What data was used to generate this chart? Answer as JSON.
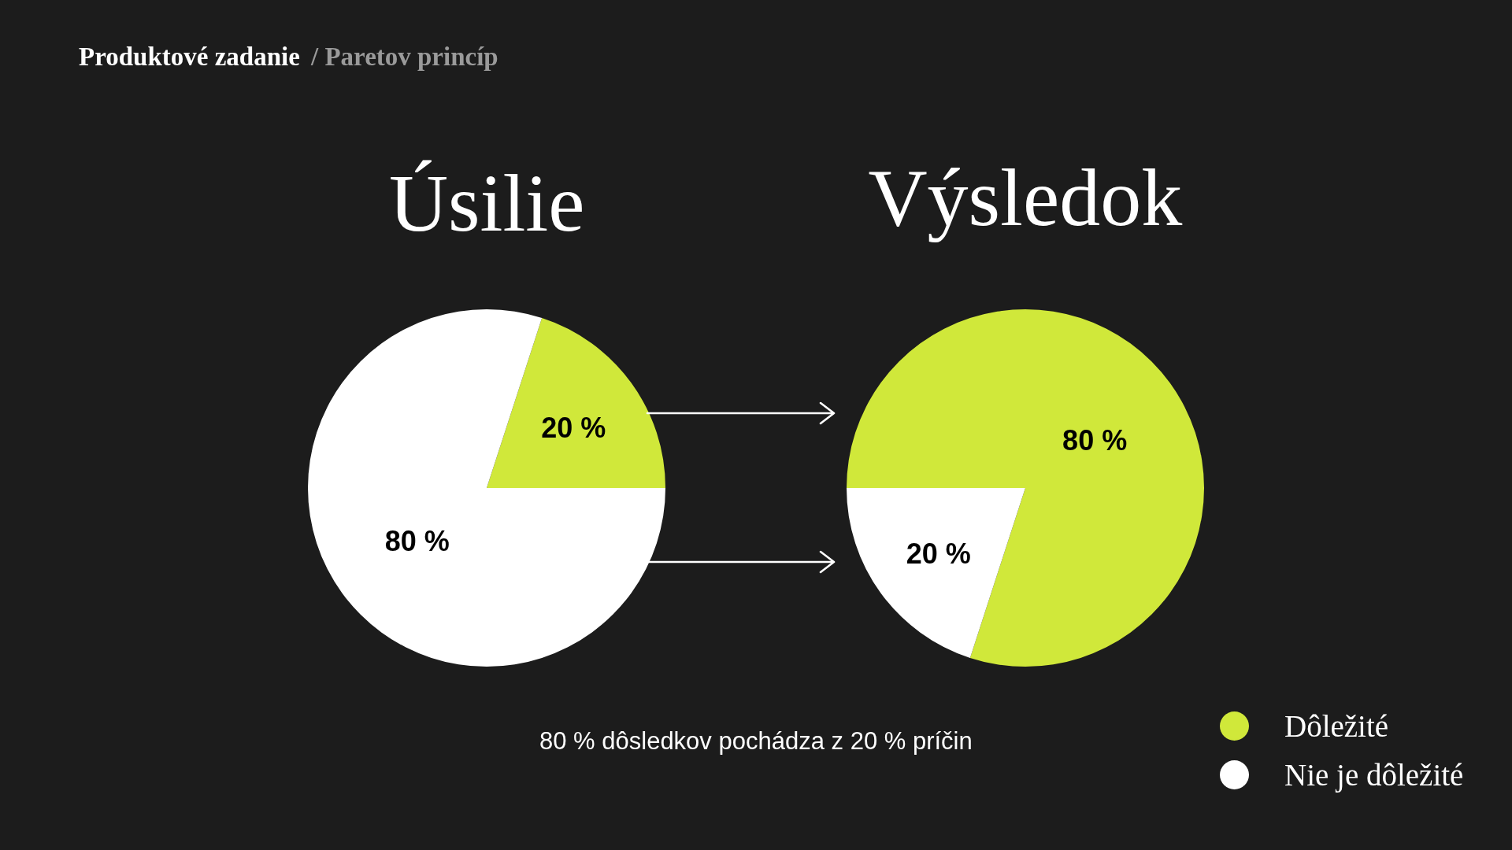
{
  "chart_data": {
    "type": "pie",
    "categories": [
      "Dôležité",
      "Nie je dôležité"
    ],
    "colors": [
      "#d0e83a",
      "#ffffff"
    ],
    "series": [
      {
        "name": "Úsilie",
        "values": [
          20,
          80
        ],
        "value_labels": [
          "20 %",
          "80 %"
        ]
      },
      {
        "name": "Výsledok",
        "values": [
          80,
          20
        ],
        "value_labels": [
          "80 %",
          "20 %"
        ]
      }
    ],
    "legend": "bottom right",
    "annotations": [
      "Produktové zadanie",
      "/ Paretov princíp",
      "80 % dôsledkov pochádza z 20 % príčin"
    ]
  }
}
